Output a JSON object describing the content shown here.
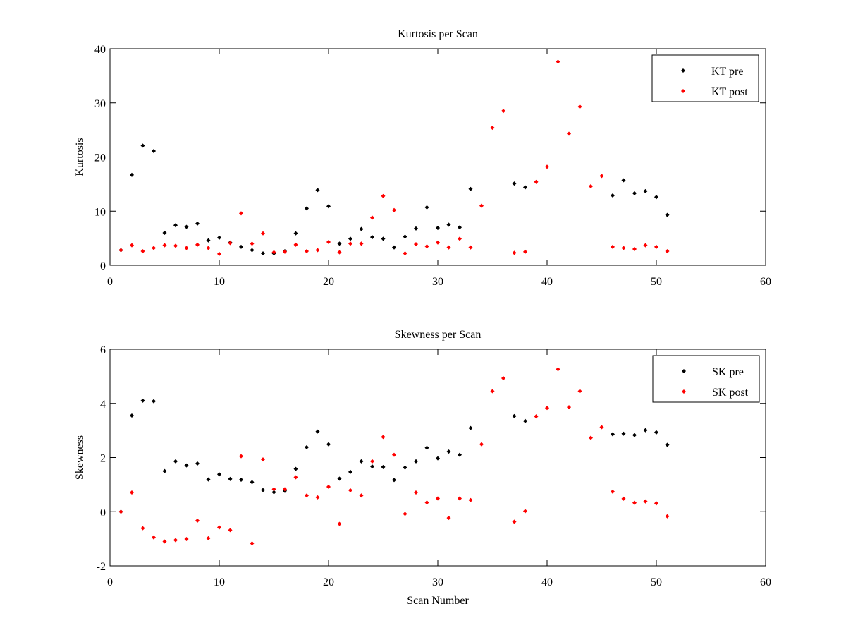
{
  "chart_data": [
    {
      "type": "scatter",
      "title": "Kurtosis per Scan",
      "xlabel": "",
      "ylabel": "Kurtosis",
      "xlim": [
        0,
        60
      ],
      "ylim": [
        0,
        40
      ],
      "xticks": [
        0,
        10,
        20,
        30,
        40,
        50,
        60
      ],
      "yticks": [
        0,
        10,
        20,
        30,
        40
      ],
      "grid": false,
      "legend_position": "top-right",
      "series": [
        {
          "name": "KT pre",
          "color": "#000000",
          "x": [
            1,
            2,
            3,
            4,
            5,
            6,
            7,
            8,
            9,
            10,
            11,
            12,
            13,
            14,
            15,
            16,
            17,
            18,
            19,
            20,
            21,
            22,
            23,
            24,
            25,
            26,
            27,
            28,
            29,
            30,
            31,
            32,
            33,
            37,
            38,
            46,
            47,
            48,
            49,
            50,
            51
          ],
          "y": [
            2.8,
            16.7,
            22.1,
            21.1,
            6.0,
            7.4,
            7.1,
            7.7,
            4.6,
            5.1,
            4.2,
            3.4,
            2.8,
            2.2,
            2.2,
            2.6,
            5.9,
            10.5,
            13.9,
            10.9,
            4.0,
            4.9,
            6.7,
            5.2,
            4.9,
            3.3,
            5.3,
            6.8,
            10.7,
            6.9,
            7.5,
            7.0,
            14.1,
            15.1,
            14.4,
            12.9,
            15.7,
            13.3,
            13.7,
            12.6,
            9.3
          ]
        },
        {
          "name": "KT post",
          "color": "#ff0000",
          "x": [
            1,
            2,
            3,
            4,
            5,
            6,
            7,
            8,
            9,
            10,
            11,
            12,
            13,
            14,
            15,
            16,
            17,
            18,
            19,
            20,
            21,
            22,
            23,
            24,
            25,
            26,
            27,
            28,
            29,
            30,
            31,
            32,
            33,
            34,
            35,
            36,
            37,
            38,
            39,
            40,
            41,
            42,
            43,
            44,
            45,
            46,
            47,
            48,
            49,
            50,
            51
          ],
          "y": [
            2.8,
            3.7,
            2.6,
            3.2,
            3.7,
            3.6,
            3.2,
            3.8,
            3.2,
            2.1,
            4.1,
            9.6,
            4.0,
            5.9,
            2.4,
            2.5,
            3.8,
            2.6,
            2.8,
            4.3,
            2.4,
            4.0,
            4.0,
            8.8,
            12.8,
            10.2,
            2.2,
            3.9,
            3.5,
            4.2,
            3.3,
            4.9,
            3.3,
            11.0,
            25.4,
            28.5,
            2.3,
            2.5,
            15.4,
            18.2,
            37.6,
            24.3,
            29.3,
            14.6,
            16.5,
            3.4,
            3.2,
            3.0,
            3.7,
            3.4,
            2.6
          ]
        }
      ]
    },
    {
      "type": "scatter",
      "title": "Skewness per Scan",
      "xlabel": "Scan Number",
      "ylabel": "Skewness",
      "xlim": [
        0,
        60
      ],
      "ylim": [
        -2,
        6
      ],
      "xticks": [
        0,
        10,
        20,
        30,
        40,
        50,
        60
      ],
      "yticks": [
        -2,
        0,
        2,
        4,
        6
      ],
      "grid": false,
      "legend_position": "top-right",
      "series": [
        {
          "name": "SK pre",
          "color": "#000000",
          "x": [
            1,
            2,
            3,
            4,
            5,
            6,
            7,
            8,
            9,
            10,
            11,
            12,
            13,
            14,
            15,
            16,
            17,
            18,
            19,
            20,
            21,
            22,
            23,
            24,
            25,
            26,
            27,
            28,
            29,
            30,
            31,
            32,
            33,
            37,
            38,
            46,
            47,
            48,
            49,
            50,
            51
          ],
          "y": [
            0.0,
            3.55,
            4.1,
            4.08,
            1.5,
            1.86,
            1.71,
            1.78,
            1.19,
            1.38,
            1.21,
            1.18,
            1.09,
            0.8,
            0.72,
            0.77,
            1.58,
            2.38,
            2.96,
            2.49,
            1.22,
            1.47,
            1.86,
            1.67,
            1.65,
            1.17,
            1.63,
            1.86,
            2.36,
            1.97,
            2.22,
            2.1,
            3.09,
            3.53,
            3.35,
            2.86,
            2.88,
            2.83,
            3.01,
            2.93,
            2.47
          ]
        },
        {
          "name": "SK post",
          "color": "#ff0000",
          "x": [
            1,
            2,
            3,
            4,
            5,
            6,
            7,
            8,
            9,
            10,
            11,
            12,
            13,
            14,
            15,
            16,
            17,
            18,
            19,
            20,
            21,
            22,
            23,
            24,
            25,
            26,
            27,
            28,
            29,
            30,
            31,
            32,
            33,
            34,
            35,
            36,
            37,
            38,
            39,
            40,
            41,
            42,
            43,
            44,
            45,
            46,
            47,
            48,
            49,
            50,
            51
          ],
          "y": [
            0.0,
            0.71,
            -0.61,
            -0.95,
            -1.1,
            -1.05,
            -1.01,
            -0.33,
            -0.98,
            -0.58,
            -0.68,
            2.05,
            -1.17,
            1.93,
            0.83,
            0.83,
            1.27,
            0.6,
            0.53,
            0.92,
            -0.45,
            0.79,
            0.6,
            1.86,
            2.76,
            2.1,
            -0.08,
            0.71,
            0.34,
            0.49,
            -0.23,
            0.49,
            0.43,
            2.49,
            4.45,
            4.93,
            -0.37,
            0.02,
            3.52,
            3.83,
            5.26,
            3.86,
            4.45,
            2.73,
            3.12,
            0.74,
            0.48,
            0.33,
            0.38,
            0.31,
            -0.17
          ]
        }
      ]
    }
  ]
}
